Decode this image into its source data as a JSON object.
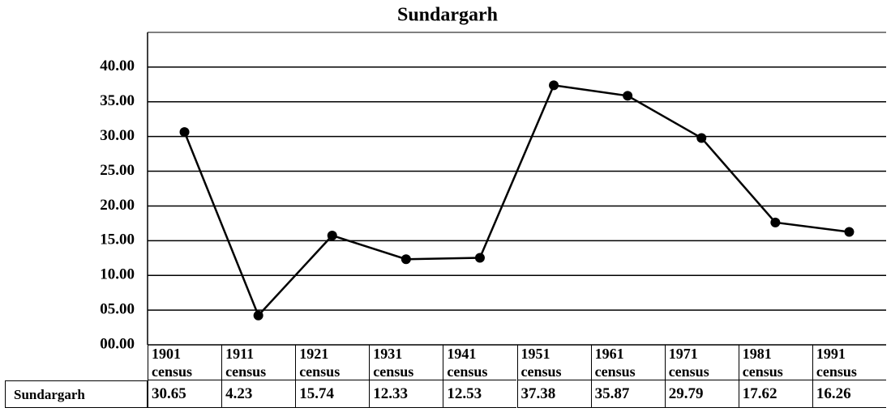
{
  "chart_data": {
    "type": "line",
    "title": "Sundargarh",
    "categories": [
      "1901 census",
      "1911 census",
      "1921 census",
      "1931 census",
      "1941 census",
      "1951 census",
      "1961 census",
      "1971 census",
      "1981 census",
      "1991 census"
    ],
    "series": [
      {
        "name": "Sundargarh",
        "color": "#000000",
        "values": [
          30.65,
          4.23,
          15.74,
          12.33,
          12.53,
          37.38,
          35.87,
          29.79,
          17.62,
          16.26
        ]
      }
    ],
    "ylim": [
      0,
      45
    ],
    "yticks": [
      {
        "value": 0,
        "label": "00.00"
      },
      {
        "value": 5,
        "label": "05.00"
      },
      {
        "value": 10,
        "label": "10.00"
      },
      {
        "value": 15,
        "label": "15.00"
      },
      {
        "value": 20,
        "label": "20.00"
      },
      {
        "value": 25,
        "label": "25.00"
      },
      {
        "value": 30,
        "label": "30.00"
      },
      {
        "value": 35,
        "label": "35.00"
      },
      {
        "value": 40,
        "label": "40.00"
      }
    ],
    "grid": true
  }
}
